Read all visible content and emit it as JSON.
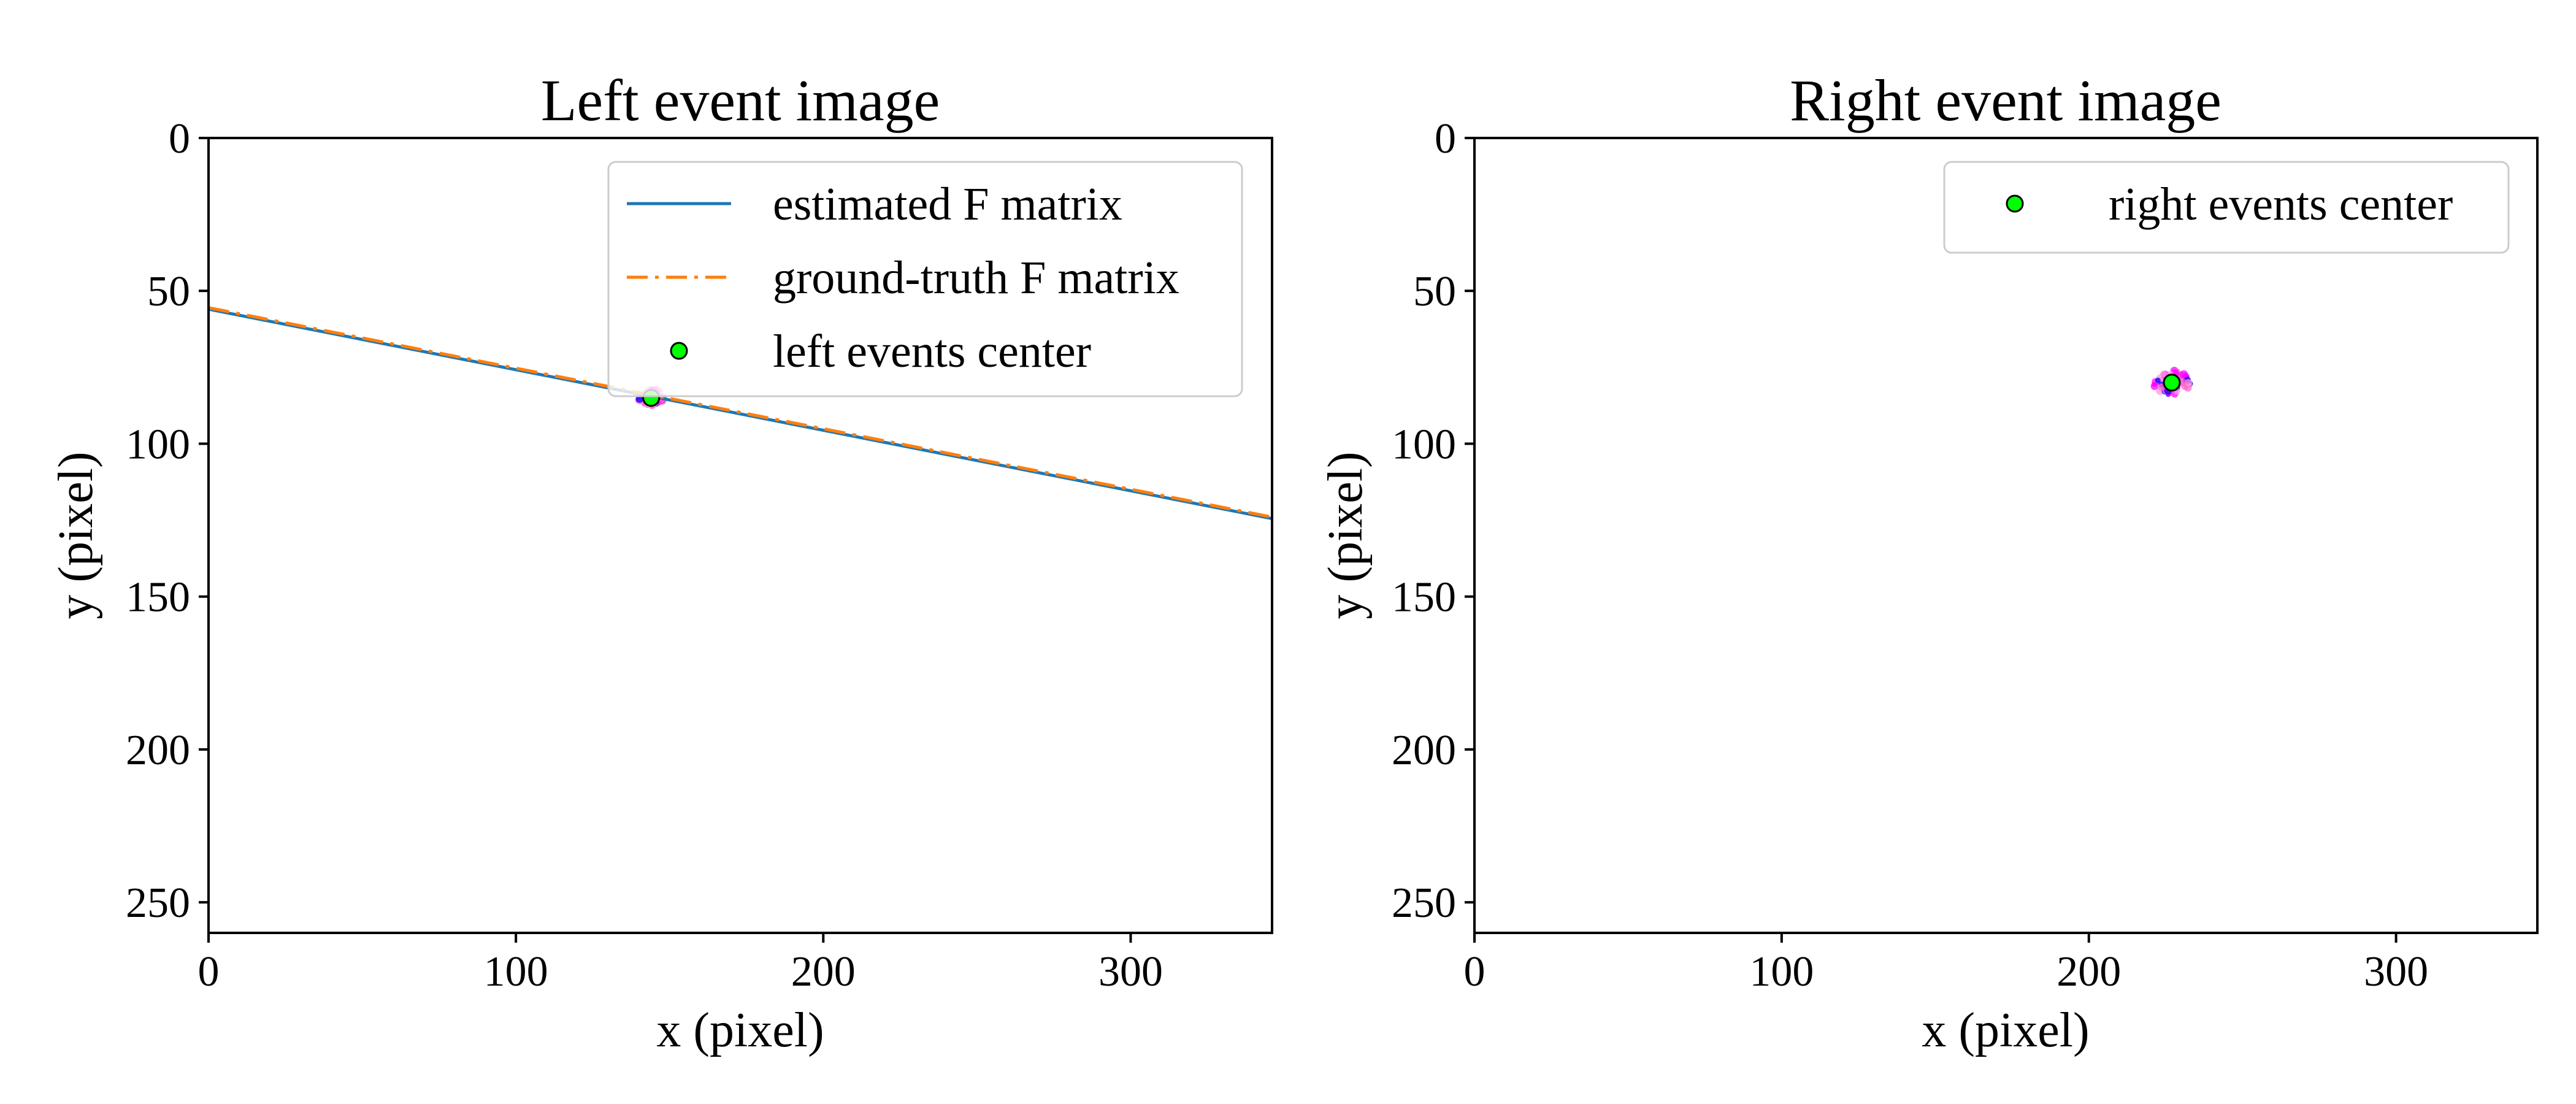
{
  "figure": {
    "background": "#ffffff"
  },
  "chart_data": [
    {
      "type": "line",
      "title": "Left event image",
      "xlabel": "x (pixel)",
      "ylabel": "y (pixel)",
      "xlim": [
        0,
        346
      ],
      "ylim": [
        260,
        0
      ],
      "y_inverted": true,
      "xticks": [
        0,
        100,
        200,
        300
      ],
      "yticks": [
        0,
        50,
        100,
        150,
        200,
        250
      ],
      "grid": false,
      "legend_position": "top-right",
      "series": [
        {
          "name": "estimated F matrix",
          "kind": "line",
          "style": "solid",
          "color": "#1f77b4",
          "x": [
            0,
            346
          ],
          "y": [
            56.0,
            124.5
          ]
        },
        {
          "name": "ground-truth F matrix",
          "kind": "line",
          "style": "dashdot",
          "color": "#ff7f0e",
          "x": [
            0,
            346
          ],
          "y": [
            55.5,
            124.0
          ]
        },
        {
          "name": "left events center",
          "kind": "scatter",
          "color": "#00ff00",
          "edge_color": "#000000",
          "x": [
            144
          ],
          "y": [
            85
          ]
        }
      ],
      "events": {
        "colors": [
          "#ff00ff",
          "#ff66cc",
          "#0000ff",
          "#ff99dd"
        ],
        "center": [
          144,
          85
        ],
        "spread": [
          4,
          3
        ]
      }
    },
    {
      "type": "scatter",
      "title": "Right event image",
      "xlabel": "x (pixel)",
      "ylabel": "y (pixel)",
      "xlim": [
        0,
        346
      ],
      "ylim": [
        260,
        0
      ],
      "y_inverted": true,
      "xticks": [
        0,
        100,
        200,
        300
      ],
      "yticks": [
        0,
        50,
        100,
        150,
        200,
        250
      ],
      "grid": false,
      "legend_position": "top-right",
      "series": [
        {
          "name": "right events center",
          "kind": "scatter",
          "color": "#00ff00",
          "edge_color": "#000000",
          "x": [
            227
          ],
          "y": [
            80
          ]
        }
      ],
      "events": {
        "colors": [
          "#ff00ff",
          "#ff66cc",
          "#0000ff",
          "#ff99dd"
        ],
        "center": [
          227,
          80
        ],
        "spread": [
          6,
          4
        ]
      }
    }
  ]
}
